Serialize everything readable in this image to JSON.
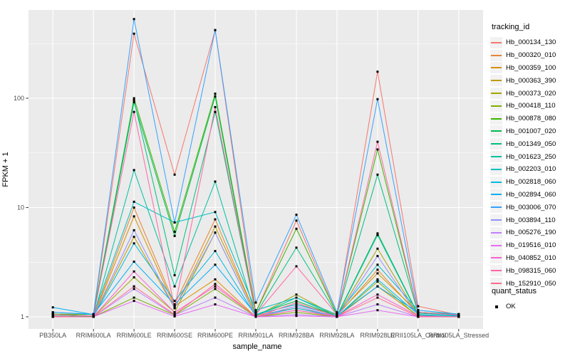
{
  "chart_data": {
    "type": "line",
    "title": "",
    "xlabel": "sample_name",
    "ylabel": "FPKM + 1",
    "yscale": "log10",
    "ylim": [
      0.78,
      640
    ],
    "yticks": [
      1,
      10,
      100
    ],
    "grid": "major-and-minor-horizontal, major-vertical, white on gray panel",
    "legend_position": "right",
    "point_marker": "small black square (quant_status OK)",
    "categories": [
      "PB350LA",
      "RRIM600LA",
      "RRIM600LE",
      "RRIM600SE",
      "RRIM600PE",
      "RRIM901LA",
      "RRIM928BA",
      "RRIM928LA",
      "RRIM928LE",
      "RRII105LA_Control",
      "RRII105LA_Stressed"
    ],
    "series": [
      {
        "name": "Hb_000134_130",
        "color": "#F8766D",
        "values": [
          1.05,
          1.02,
          390,
          20,
          420,
          1.1,
          7.6,
          1.05,
          175,
          1.25,
          1.04
        ]
      },
      {
        "name": "Hb_000320_010",
        "color": "#EA8331",
        "values": [
          1.02,
          1.0,
          10.0,
          1.3,
          7.8,
          1.04,
          1.2,
          1.02,
          2.7,
          1.05,
          1.0
        ]
      },
      {
        "name": "Hb_000359_100",
        "color": "#D89000",
        "values": [
          1.0,
          1.0,
          8.3,
          1.25,
          2.2,
          1.0,
          1.15,
          1.0,
          1.9,
          1.02,
          1.0
        ]
      },
      {
        "name": "Hb_000363_390",
        "color": "#C09B00",
        "values": [
          1.06,
          1.01,
          5.4,
          1.2,
          6.7,
          1.05,
          1.3,
          1.05,
          2.5,
          1.1,
          1.04
        ]
      },
      {
        "name": "Hb_000373_020",
        "color": "#A3A500",
        "values": [
          1.01,
          1.0,
          2.3,
          1.1,
          5.9,
          1.01,
          1.6,
          1.01,
          4.2,
          1.03,
          1.0
        ]
      },
      {
        "name": "Hb_000418_110",
        "color": "#7CAE00",
        "values": [
          1.0,
          1.0,
          1.5,
          1.04,
          1.8,
          1.0,
          1.1,
          1.0,
          2.1,
          1.0,
          1.0
        ]
      },
      {
        "name": "Hb_000878_080",
        "color": "#39B600",
        "values": [
          1.06,
          1.05,
          100,
          6.0,
          110,
          1.1,
          6.4,
          1.06,
          34,
          1.1,
          1.05
        ]
      },
      {
        "name": "Hb_001007_020",
        "color": "#00BB4E",
        "values": [
          1.02,
          1.01,
          92,
          5.5,
          104,
          1.05,
          1.4,
          1.02,
          5.8,
          1.05,
          1.01
        ]
      },
      {
        "name": "Hb_001349_050",
        "color": "#00BF7D",
        "values": [
          1.05,
          1.02,
          96,
          2.4,
          75,
          1.06,
          4.3,
          1.05,
          20,
          1.08,
          1.03
        ]
      },
      {
        "name": "Hb_001623_250",
        "color": "#00C1A3",
        "values": [
          1.01,
          1.0,
          22,
          1.9,
          17.3,
          1.02,
          1.5,
          1.01,
          5.6,
          1.04,
          1.0
        ]
      },
      {
        "name": "Hb_002203_010",
        "color": "#00BFC4",
        "values": [
          1.1,
          1.05,
          11.3,
          7.3,
          9.1,
          1.15,
          1.5,
          1.05,
          3.0,
          1.15,
          1.06
        ]
      },
      {
        "name": "Hb_002818_060",
        "color": "#00BAE0",
        "values": [
          1.0,
          1.0,
          4.7,
          1.4,
          4.0,
          1.01,
          1.2,
          1.0,
          2.2,
          1.05,
          1.0
        ]
      },
      {
        "name": "Hb_002894_060",
        "color": "#00B0F6",
        "values": [
          1.22,
          1.05,
          3.2,
          1.3,
          3.0,
          1.05,
          1.3,
          1.02,
          1.9,
          1.1,
          1.02
        ]
      },
      {
        "name": "Hb_003006_070",
        "color": "#35A2FF",
        "values": [
          1.1,
          1.06,
          530,
          7.3,
          420,
          1.35,
          8.6,
          1.1,
          98,
          1.15,
          1.05
        ]
      },
      {
        "name": "Hb_003894_110",
        "color": "#9590FF",
        "values": [
          1.0,
          1.0,
          6.2,
          1.2,
          5.9,
          1.0,
          1.25,
          1.0,
          3.6,
          1.02,
          1.0
        ]
      },
      {
        "name": "Hb_005276_190",
        "color": "#BF80FF",
        "values": [
          1.0,
          1.0,
          1.8,
          1.04,
          1.5,
          1.0,
          1.05,
          1.0,
          1.3,
          1.0,
          1.0
        ]
      },
      {
        "name": "Hb_019516_010",
        "color": "#E76BF3",
        "values": [
          1.0,
          1.0,
          1.4,
          1.01,
          1.3,
          1.0,
          1.02,
          1.0,
          1.15,
          1.0,
          1.0
        ]
      },
      {
        "name": "Hb_040852_010",
        "color": "#FD61D1",
        "values": [
          1.01,
          1.0,
          2.6,
          1.1,
          1.9,
          1.01,
          1.15,
          1.01,
          1.6,
          1.02,
          1.0
        ]
      },
      {
        "name": "Hb_098315_060",
        "color": "#FF67A4",
        "values": [
          1.05,
          1.02,
          75,
          1.2,
          83,
          1.05,
          2.9,
          1.05,
          40,
          1.1,
          1.04
        ]
      },
      {
        "name": "Hb_152910_050",
        "color": "#FF6C90",
        "values": [
          1.0,
          1.0,
          1.9,
          1.05,
          2.0,
          1.0,
          1.35,
          1.0,
          1.5,
          1.0,
          1.0
        ]
      }
    ]
  },
  "legend_tracking": {
    "title": "tracking_id"
  },
  "legend_quant": {
    "title": "quant_status",
    "items": [
      {
        "label": "OK",
        "marker": "black-square"
      }
    ]
  },
  "colors": {
    "panel_bg": "#EBEBEB",
    "grid": "#FFFFFF",
    "tick_text": "#4D4D4D",
    "point": "#000000",
    "legend_key_bg": "#F2F2F2"
  }
}
